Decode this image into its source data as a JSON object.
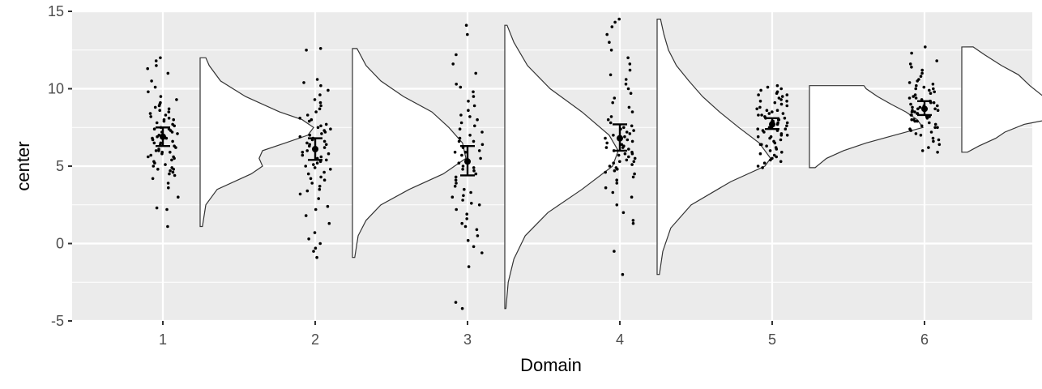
{
  "chart_data": {
    "type": "raincloud",
    "xlabel": "Domain",
    "ylabel": "center",
    "ylim": [
      -5,
      15
    ],
    "y_ticks": [
      -5,
      0,
      5,
      10,
      15
    ],
    "categories": [
      "1",
      "2",
      "3",
      "4",
      "5",
      "6"
    ],
    "grid": true,
    "legend": "none",
    "colors": {
      "panel": "#ebebeb",
      "grid": "#ffffff",
      "points": "#000000",
      "density_fill": "#ffffff",
      "density_line": "#333333"
    },
    "groups": [
      {
        "category": "1",
        "mean": 6.9,
        "ci": [
          6.3,
          7.5
        ],
        "min": 1.1,
        "max": 12.0,
        "density": [
          [
            1.1,
            0.02
          ],
          [
            2.5,
            0.05
          ],
          [
            3.5,
            0.15
          ],
          [
            4.5,
            0.45
          ],
          [
            5.0,
            0.55
          ],
          [
            5.5,
            0.52
          ],
          [
            6.0,
            0.55
          ],
          [
            6.5,
            0.75
          ],
          [
            7.0,
            0.95
          ],
          [
            7.5,
            1.0
          ],
          [
            8.0,
            0.9
          ],
          [
            8.5,
            0.7
          ],
          [
            9.5,
            0.4
          ],
          [
            10.5,
            0.18
          ],
          [
            11.5,
            0.08
          ],
          [
            12.0,
            0.05
          ]
        ],
        "points": [
          1.1,
          2.3,
          2.2,
          3.0,
          3.6,
          3.9,
          4.2,
          4.4,
          4.5,
          4.6,
          4.7,
          4.8,
          4.9,
          5.0,
          5.1,
          5.2,
          5.3,
          5.4,
          5.5,
          5.6,
          5.7,
          5.8,
          5.9,
          6.0,
          6.0,
          6.1,
          6.2,
          6.3,
          6.4,
          6.5,
          6.6,
          6.7,
          6.8,
          6.9,
          7.0,
          7.0,
          7.1,
          7.2,
          7.3,
          7.4,
          7.5,
          7.6,
          7.7,
          7.8,
          7.9,
          8.0,
          8.1,
          8.2,
          8.3,
          8.4,
          8.5,
          8.6,
          8.7,
          8.8,
          8.9,
          9.0,
          9.1,
          9.3,
          9.5,
          9.8,
          10.1,
          10.5,
          11.0,
          11.3,
          11.5,
          11.8,
          12.0,
          6.5,
          7.2,
          5.9,
          8.0,
          4.8,
          6.8,
          7.4,
          5.6
        ]
      },
      {
        "category": "2",
        "mean": 6.1,
        "ci": [
          5.4,
          6.8
        ],
        "min": -0.9,
        "max": 12.6,
        "density": [
          [
            -0.9,
            0.02
          ],
          [
            0.5,
            0.05
          ],
          [
            1.5,
            0.12
          ],
          [
            2.5,
            0.25
          ],
          [
            3.5,
            0.5
          ],
          [
            4.5,
            0.8
          ],
          [
            5.5,
            1.0
          ],
          [
            6.5,
            0.97
          ],
          [
            7.5,
            0.85
          ],
          [
            8.5,
            0.7
          ],
          [
            9.5,
            0.45
          ],
          [
            10.5,
            0.25
          ],
          [
            11.5,
            0.12
          ],
          [
            12.6,
            0.04
          ]
        ],
        "points": [
          -0.9,
          -0.5,
          -0.3,
          0.0,
          0.3,
          0.7,
          1.3,
          1.8,
          2.2,
          2.4,
          2.9,
          3.2,
          3.5,
          3.7,
          3.9,
          4.1,
          4.3,
          4.5,
          4.6,
          4.8,
          4.9,
          5.0,
          5.2,
          5.3,
          5.4,
          5.5,
          5.6,
          5.7,
          5.8,
          5.9,
          6.0,
          6.1,
          6.2,
          6.3,
          6.4,
          6.5,
          6.6,
          6.7,
          6.8,
          6.9,
          7.0,
          7.1,
          7.2,
          7.3,
          7.4,
          7.5,
          7.7,
          7.9,
          8.1,
          8.3,
          8.5,
          8.7,
          8.9,
          9.1,
          9.3,
          9.6,
          9.9,
          10.2,
          10.4,
          10.6,
          12.5,
          12.6,
          5.1,
          6.4,
          7.6,
          4.2,
          8.0,
          3.4
        ]
      },
      {
        "category": "3",
        "mean": 5.3,
        "ci": [
          4.4,
          6.3
        ],
        "min": -4.2,
        "max": 14.1,
        "density": [
          [
            -4.2,
            0.01
          ],
          [
            -2.5,
            0.03
          ],
          [
            -1.0,
            0.08
          ],
          [
            0.5,
            0.18
          ],
          [
            2.0,
            0.38
          ],
          [
            3.5,
            0.68
          ],
          [
            5.0,
            0.95
          ],
          [
            6.0,
            1.0
          ],
          [
            7.0,
            0.92
          ],
          [
            8.5,
            0.68
          ],
          [
            10.0,
            0.4
          ],
          [
            11.5,
            0.2
          ],
          [
            13.0,
            0.08
          ],
          [
            14.1,
            0.02
          ]
        ],
        "points": [
          -4.2,
          -3.8,
          -1.5,
          -0.6,
          -0.2,
          0.2,
          0.5,
          0.9,
          1.3,
          1.6,
          1.9,
          2.2,
          2.5,
          2.8,
          3.0,
          3.3,
          3.5,
          3.7,
          3.9,
          4.1,
          4.3,
          4.5,
          4.7,
          4.9,
          5.0,
          5.2,
          5.4,
          5.5,
          5.7,
          5.9,
          6.0,
          6.2,
          6.4,
          6.6,
          6.8,
          7.0,
          7.2,
          7.4,
          7.6,
          7.8,
          8.0,
          8.3,
          8.6,
          8.9,
          9.2,
          9.5,
          9.8,
          10.1,
          10.3,
          11.0,
          11.6,
          12.2,
          13.5,
          14.1,
          3.1,
          6.6,
          2.6,
          8.2,
          4.8,
          5.9,
          1.1
        ]
      },
      {
        "category": "4",
        "mean": 6.8,
        "ci": [
          6.0,
          7.7
        ],
        "min": -2.0,
        "max": 14.5,
        "density": [
          [
            -2.0,
            0.02
          ],
          [
            -0.5,
            0.05
          ],
          [
            1.0,
            0.12
          ],
          [
            2.5,
            0.3
          ],
          [
            4.0,
            0.65
          ],
          [
            5.0,
            0.95
          ],
          [
            5.5,
            1.0
          ],
          [
            6.5,
            0.9
          ],
          [
            7.5,
            0.72
          ],
          [
            8.5,
            0.55
          ],
          [
            9.5,
            0.4
          ],
          [
            10.5,
            0.28
          ],
          [
            11.5,
            0.17
          ],
          [
            12.5,
            0.1
          ],
          [
            13.5,
            0.06
          ],
          [
            14.5,
            0.03
          ]
        ],
        "points": [
          -2.0,
          -0.5,
          1.3,
          1.5,
          2.0,
          2.5,
          3.0,
          3.3,
          3.6,
          3.9,
          4.1,
          4.3,
          4.5,
          4.6,
          4.8,
          4.9,
          5.0,
          5.1,
          5.2,
          5.3,
          5.4,
          5.5,
          5.6,
          5.7,
          5.8,
          5.9,
          6.0,
          6.1,
          6.2,
          6.3,
          6.4,
          6.5,
          6.6,
          6.7,
          6.8,
          6.9,
          7.0,
          7.1,
          7.2,
          7.3,
          7.4,
          7.6,
          7.8,
          8.0,
          8.2,
          8.5,
          8.8,
          9.1,
          9.4,
          9.7,
          10.0,
          10.3,
          10.6,
          10.9,
          11.2,
          11.6,
          12.0,
          12.5,
          13.0,
          13.5,
          14.0,
          14.3,
          14.5,
          5.3,
          6.2,
          4.7,
          7.5,
          5.8
        ]
      },
      {
        "category": "5",
        "mean": 7.7,
        "ci": [
          7.4,
          8.1
        ],
        "min": 4.9,
        "max": 10.2,
        "density": [
          [
            4.9,
            0.05
          ],
          [
            5.5,
            0.15
          ],
          [
            6.0,
            0.3
          ],
          [
            6.5,
            0.5
          ],
          [
            7.0,
            0.75
          ],
          [
            7.5,
            1.0
          ],
          [
            8.0,
            0.95
          ],
          [
            8.5,
            0.85
          ],
          [
            9.0,
            0.72
          ],
          [
            9.5,
            0.6
          ],
          [
            10.0,
            0.5
          ],
          [
            10.2,
            0.48
          ]
        ],
        "points": [
          4.9,
          5.0,
          5.2,
          5.3,
          5.5,
          5.6,
          5.7,
          5.8,
          5.9,
          6.0,
          6.1,
          6.2,
          6.3,
          6.4,
          6.5,
          6.6,
          6.7,
          6.8,
          6.9,
          7.0,
          7.0,
          7.1,
          7.2,
          7.3,
          7.3,
          7.4,
          7.5,
          7.5,
          7.6,
          7.7,
          7.7,
          7.8,
          7.9,
          7.9,
          8.0,
          8.0,
          8.1,
          8.2,
          8.3,
          8.3,
          8.4,
          8.5,
          8.6,
          8.7,
          8.8,
          8.9,
          9.0,
          9.1,
          9.2,
          9.3,
          9.4,
          9.5,
          9.6,
          9.7,
          9.8,
          9.9,
          10.0,
          10.1,
          10.2,
          7.6,
          8.1,
          6.9,
          7.4,
          8.6,
          9.2,
          6.4,
          7.8,
          8.4,
          5.4,
          9.6
        ]
      },
      {
        "category": "6",
        "mean": 8.7,
        "ci": [
          8.3,
          9.2
        ],
        "min": 5.9,
        "max": 12.7,
        "density": [
          [
            5.9,
            0.05
          ],
          [
            6.3,
            0.15
          ],
          [
            6.8,
            0.3
          ],
          [
            7.2,
            0.38
          ],
          [
            7.7,
            0.55
          ],
          [
            8.2,
            0.9
          ],
          [
            8.5,
            1.0
          ],
          [
            8.9,
            0.9
          ],
          [
            9.5,
            0.72
          ],
          [
            10.2,
            0.6
          ],
          [
            10.9,
            0.5
          ],
          [
            11.5,
            0.35
          ],
          [
            12.2,
            0.2
          ],
          [
            12.7,
            0.1
          ]
        ],
        "points": [
          5.9,
          6.0,
          6.2,
          6.4,
          6.6,
          6.8,
          7.0,
          7.1,
          7.2,
          7.3,
          7.4,
          7.5,
          7.6,
          7.7,
          7.8,
          7.9,
          8.0,
          8.0,
          8.1,
          8.2,
          8.2,
          8.3,
          8.4,
          8.4,
          8.5,
          8.5,
          8.6,
          8.7,
          8.7,
          8.8,
          8.9,
          8.9,
          9.0,
          9.1,
          9.2,
          9.3,
          9.4,
          9.5,
          9.6,
          9.7,
          9.8,
          9.9,
          10.0,
          10.1,
          10.2,
          10.3,
          10.4,
          10.5,
          10.6,
          10.8,
          11.0,
          11.2,
          11.4,
          11.6,
          11.8,
          12.3,
          12.7,
          8.6,
          9.1,
          7.9,
          8.3,
          9.4,
          7.5,
          10.0,
          8.8,
          6.7
        ]
      }
    ]
  }
}
